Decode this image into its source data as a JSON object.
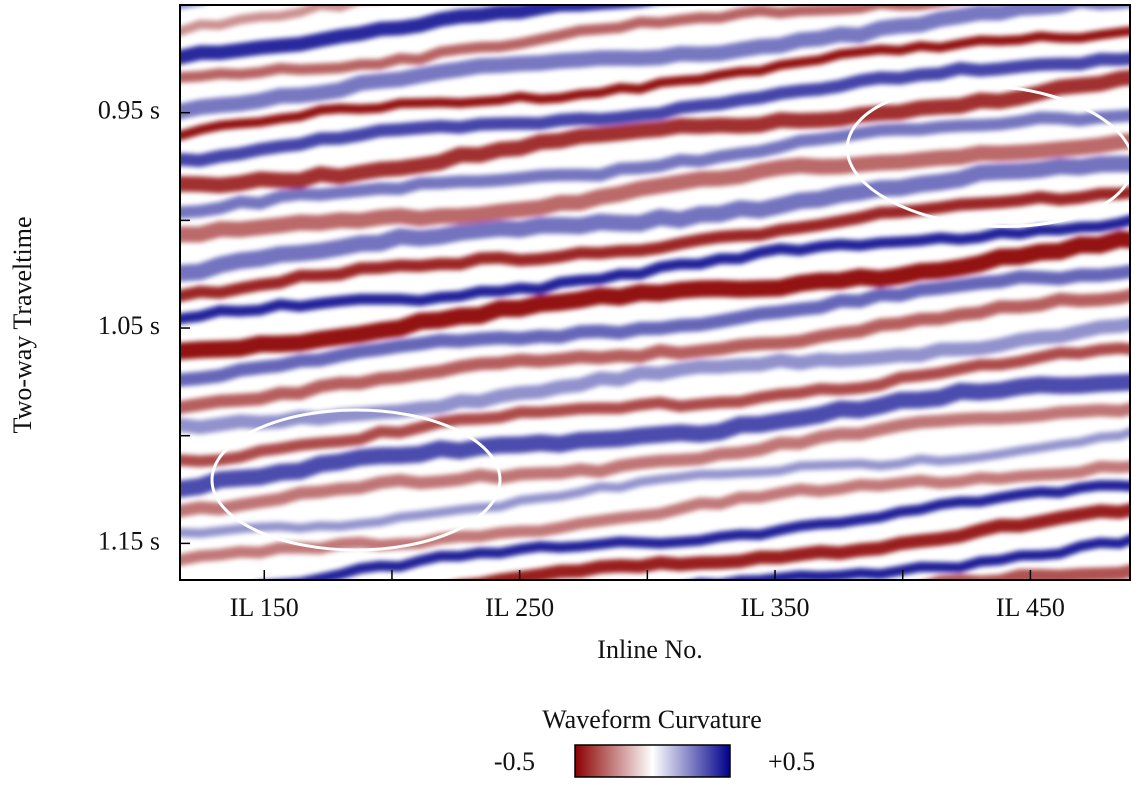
{
  "chart_data": {
    "type": "heatmap",
    "x_label": "Inline No.",
    "y_label": "Two-way Traveltime",
    "xlim": [
      117,
      489
    ],
    "xticks": [
      {
        "value": 150,
        "label": "IL 150"
      },
      {
        "value": 250,
        "label": "IL 250"
      },
      {
        "value": 350,
        "label": "IL 350"
      },
      {
        "value": 450,
        "label": "IL 450"
      }
    ],
    "xminorticks": [
      200,
      300,
      400
    ],
    "ylim": [
      0.9,
      1.167
    ],
    "yticks": [
      {
        "value": 0.95,
        "label": "0.95 s"
      },
      {
        "value": 1.05,
        "label": "1.05 s"
      },
      {
        "value": 1.15,
        "label": "1.15 s"
      }
    ],
    "yminorticks": [
      1.0,
      1.1
    ],
    "colorbar": {
      "title": "Waveform Curvature",
      "ticks": [
        -0.5,
        {
          "value": 0.5,
          "label": "+0.5"
        }
      ],
      "colormap": [
        "#8b0000",
        "#ffffff",
        "#00008b"
      ]
    }
  }
}
